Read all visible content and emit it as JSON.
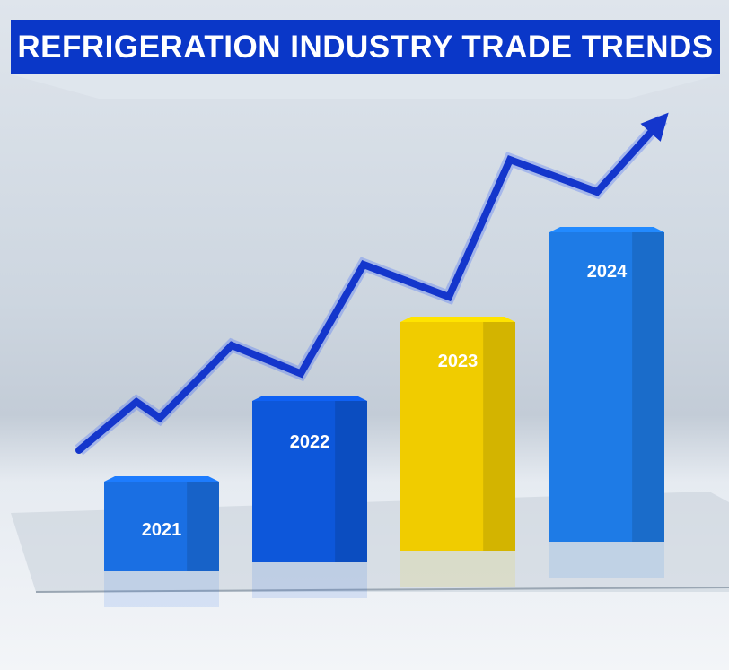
{
  "chart_data": {
    "type": "bar",
    "title": "REFRIGERATION INDUSTRY TRADE TRENDS",
    "categories": [
      "2021",
      "2022",
      "2023",
      "2024"
    ],
    "values": [
      1.0,
      1.8,
      2.55,
      3.45
    ],
    "ylim": [
      0,
      4
    ],
    "grid": false,
    "trend_line": [
      0.2,
      0.8,
      0.6,
      1.5,
      1.15,
      2.5,
      2.1,
      3.8,
      3.4,
      4.3
    ],
    "colors": {
      "2021": "#1a6fe3",
      "2022": "#0d57da",
      "2023": "#f0cc00",
      "2024": "#1e7be6",
      "trend": "#1436cc",
      "title_bg": "#0a37c8"
    }
  }
}
